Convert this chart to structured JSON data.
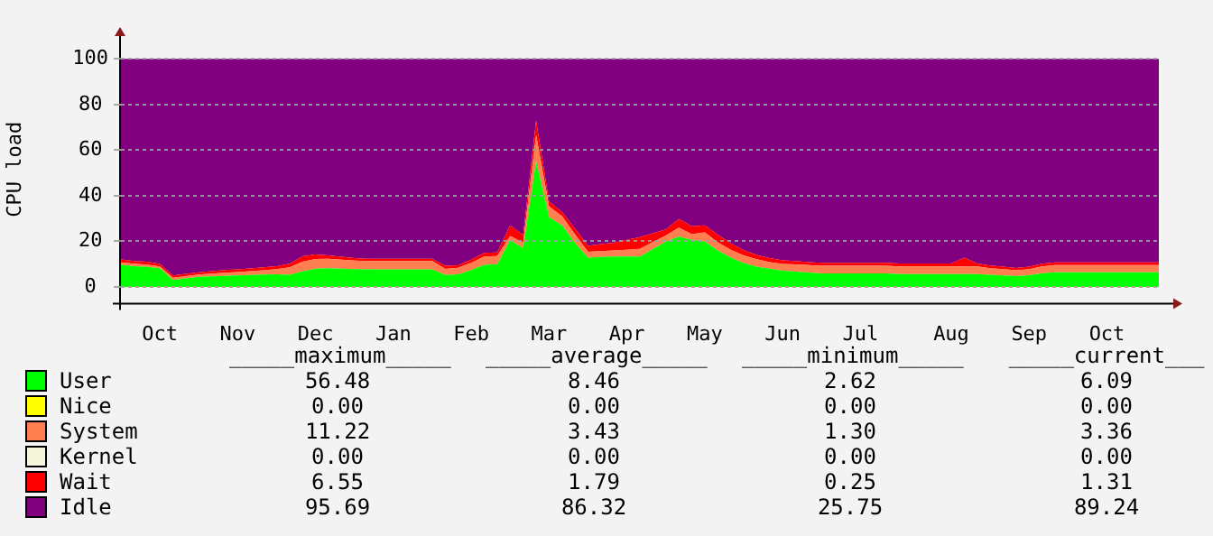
{
  "chart_data": {
    "type": "area",
    "stacked": true,
    "ylabel": "CPU load",
    "grid": "y",
    "legend": "bottom",
    "marker": "none",
    "categories": [
      null,
      null,
      null,
      "Oct",
      null,
      null,
      null,
      null,
      null,
      "Nov",
      null,
      null,
      null,
      null,
      null,
      "Dec",
      null,
      null,
      null,
      null,
      null,
      "Jan",
      null,
      null,
      null,
      null,
      null,
      "Feb",
      null,
      null,
      null,
      null,
      null,
      "Mar",
      null,
      null,
      null,
      null,
      null,
      "Apr",
      null,
      null,
      null,
      null,
      null,
      "May",
      null,
      null,
      null,
      null,
      null,
      "Jun",
      null,
      null,
      null,
      null,
      null,
      "Jul",
      null,
      null,
      null,
      null,
      null,
      null,
      "Aug",
      null,
      null,
      null,
      null,
      null,
      "Sep",
      null,
      null,
      null,
      null,
      null,
      "Oct",
      null,
      null,
      null,
      null
    ],
    "ylim": [
      -7,
      110
    ],
    "yticks": [
      0,
      20,
      40,
      60,
      80,
      100
    ],
    "series": [
      {
        "name": "User",
        "color": "#00ff00",
        "values": [
          9.7,
          9.1,
          8.8,
          8.2,
          3,
          3.7,
          4.4,
          4.6,
          4.8,
          5,
          5.2,
          5.4,
          5.5,
          5.3,
          6.8,
          8,
          8.2,
          8,
          7.8,
          7.7,
          7.7,
          7.7,
          7.7,
          7.7,
          7.7,
          5.2,
          5.5,
          7.4,
          9.7,
          10,
          20.5,
          17,
          55,
          30.5,
          27,
          19.2,
          12.8,
          13.1,
          13.3,
          13.3,
          13.3,
          16.6,
          19.9,
          22,
          20.6,
          19.9,
          16,
          12.8,
          10.5,
          8.9,
          8,
          7.1,
          6.7,
          6.3,
          5.9,
          5.9,
          5.9,
          5.9,
          5.9,
          5.9,
          5.6,
          5.6,
          5.6,
          5.6,
          5.6,
          5.6,
          5.6,
          5.3,
          5,
          4.7,
          5.1,
          6,
          6.4,
          6.4,
          6.4,
          6.4,
          6.4,
          6.4,
          6.4,
          6.4,
          6.4
        ]
      },
      {
        "name": "Nice",
        "color": "#ffff00",
        "values": [
          null,
          null,
          null,
          null,
          null,
          null,
          null,
          null,
          null,
          null,
          null,
          null,
          null,
          null,
          null,
          null,
          null,
          null,
          null,
          null,
          null,
          null,
          null,
          null,
          null,
          null,
          null,
          null,
          null,
          null,
          null,
          null,
          null,
          null,
          null,
          null,
          null,
          null,
          null,
          null,
          null,
          null,
          null,
          null,
          null,
          null,
          null,
          null,
          null,
          null,
          null,
          null,
          null,
          null,
          null,
          null,
          null,
          null,
          null,
          null,
          null,
          null,
          null,
          null,
          null,
          null,
          null,
          null,
          null,
          null,
          null,
          null,
          null,
          null,
          null,
          null,
          null,
          null,
          null,
          null,
          null
        ]
      },
      {
        "name": "System",
        "color": "#ff7f50",
        "values": [
          1.1,
          1.1,
          1,
          0.8,
          1,
          1,
          1,
          1.2,
          1.4,
          1.5,
          1.7,
          1.9,
          2.3,
          3.3,
          4.2,
          4.2,
          4.1,
          3.9,
          3.7,
          3.6,
          3.6,
          3.6,
          3.6,
          3.6,
          3.6,
          2.7,
          2.9,
          3.2,
          3.6,
          3.5,
          1.8,
          2.4,
          11.7,
          4.8,
          4,
          3.8,
          2.6,
          2.6,
          2.7,
          3,
          3.4,
          3.1,
          2.6,
          4,
          2.5,
          4,
          3.6,
          3.5,
          3.3,
          3.2,
          2.9,
          3,
          3.2,
          3.3,
          3.4,
          3.4,
          3.4,
          3.4,
          3.4,
          3.4,
          3.4,
          3.4,
          3.4,
          3.4,
          3.4,
          3.4,
          3.4,
          2.9,
          2.8,
          2.6,
          2.7,
          3,
          3.2,
          3.2,
          3.2,
          3.2,
          3.2,
          3.2,
          3.2,
          3.2,
          3.2
        ]
      },
      {
        "name": "Kernel",
        "color": "#f5f5dc",
        "values": [
          null,
          null,
          null,
          null,
          null,
          null,
          null,
          null,
          null,
          null,
          null,
          null,
          null,
          null,
          null,
          null,
          null,
          null,
          null,
          null,
          null,
          null,
          null,
          null,
          null,
          null,
          null,
          null,
          null,
          null,
          null,
          null,
          null,
          null,
          null,
          null,
          null,
          null,
          null,
          null,
          null,
          null,
          null,
          null,
          null,
          null,
          null,
          null,
          null,
          null,
          null,
          null,
          null,
          null,
          null,
          null,
          null,
          null,
          null,
          null,
          null,
          null,
          null,
          null,
          null,
          null,
          null,
          null,
          null,
          null,
          null,
          null,
          null,
          null,
          null,
          null,
          null,
          null,
          null,
          null,
          null
        ]
      },
      {
        "name": "Wait",
        "color": "#ff0000",
        "values": [
          1.2,
          1.1,
          1.2,
          1.1,
          1,
          1,
          1,
          1.1,
          1.2,
          1.2,
          1.2,
          1.3,
          1.3,
          1.6,
          2.4,
          2,
          1.5,
          1.3,
          1.1,
          1,
          1,
          1,
          1,
          1,
          1,
          1.4,
          1.1,
          1.3,
          1.6,
          1.6,
          4.7,
          3.3,
          6.3,
          2.2,
          1.8,
          2.6,
          2.6,
          3.1,
          3.4,
          4.3,
          5.1,
          3.8,
          2.7,
          3.8,
          3.5,
          3.1,
          3.3,
          2.9,
          2.3,
          1.9,
          1.7,
          1.5,
          1.4,
          1.3,
          1.3,
          1.3,
          1.3,
          1.3,
          1.3,
          1.3,
          1.3,
          1.3,
          1.3,
          1.3,
          1.3,
          3.8,
          1.3,
          1.2,
          1.1,
          1,
          1.1,
          1.2,
          1.2,
          1.2,
          1.2,
          1.2,
          1.2,
          1.2,
          1.2,
          1.2,
          1.2
        ]
      },
      {
        "name": "Idle",
        "color": "#800080",
        "values": [
          88,
          88.7,
          89,
          89.9,
          95,
          94.3,
          93.6,
          93.1,
          92.6,
          92.3,
          91.9,
          91.4,
          90.9,
          89.8,
          86.6,
          85.8,
          86.2,
          86.8,
          87.4,
          87.7,
          87.7,
          87.7,
          87.7,
          87.7,
          87.7,
          90.7,
          90.5,
          88.1,
          85.1,
          84.9,
          73,
          77.3,
          27,
          62.5,
          67.2,
          74.4,
          82,
          81.2,
          80.6,
          79.4,
          78.2,
          76.5,
          74.8,
          70.2,
          73.4,
          73,
          77.1,
          80.8,
          83.9,
          86,
          87.4,
          88.4,
          88.7,
          89.1,
          89.4,
          89.4,
          89.4,
          89.4,
          89.4,
          89.4,
          89.7,
          89.7,
          89.7,
          89.7,
          89.7,
          87.2,
          89.7,
          90.6,
          91.1,
          91.7,
          91.1,
          89.8,
          89.2,
          89.2,
          89.2,
          89.2,
          89.2,
          89.2,
          89.2,
          89.2,
          89.2
        ]
      }
    ],
    "annotations": [
      "_____maximum_____",
      "_____average_____",
      "_____minimum_____",
      "_____current___",
      "56.48",
      "8.46",
      "2.62",
      "6.09",
      "0.00",
      "0.00",
      "0.00",
      "0.00",
      "11.22",
      "3.43",
      "1.30",
      "3.36",
      "0.00",
      "0.00",
      "0.00",
      "0.00",
      "6.55",
      "1.79",
      "0.25",
      "1.31",
      "95.69",
      "86.32",
      "25.75",
      "89.24"
    ]
  }
}
